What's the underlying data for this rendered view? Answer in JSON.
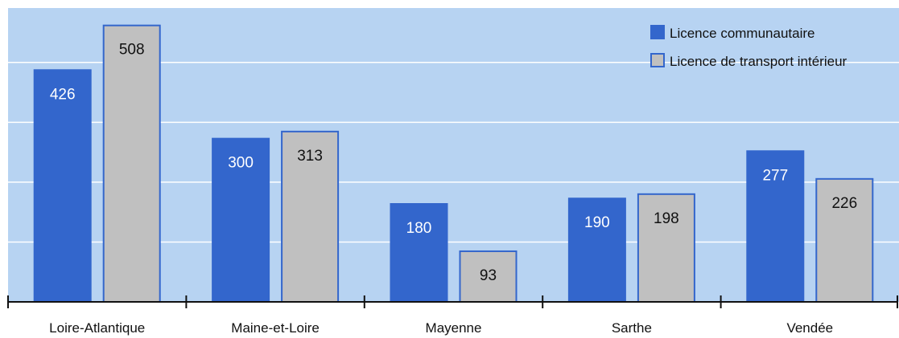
{
  "chart_data": {
    "type": "bar",
    "categories": [
      "Loire-Atlantique",
      "Maine-et-Loire",
      "Mayenne",
      "Sarthe",
      "Vendée"
    ],
    "series": [
      {
        "name": "Licence communautaire",
        "values": [
          426,
          300,
          180,
          190,
          277
        ],
        "color": "#3366cc"
      },
      {
        "name": "Licence de transport intérieur",
        "values": [
          508,
          313,
          93,
          198,
          226
        ],
        "color": "#c0c0c0"
      }
    ],
    "title": "",
    "xlabel": "",
    "ylabel": "",
    "ylim": [
      0,
      540
    ],
    "grid": true,
    "gridlines": [
      110,
      220,
      330,
      440
    ],
    "legend": "top-right",
    "colors": {
      "plot_background": "#b7d3f2",
      "gridline": "#ffffff",
      "bar_border": "#3366cc",
      "label_on_blue": "#ffffff",
      "label_on_grey": "#111111"
    }
  }
}
